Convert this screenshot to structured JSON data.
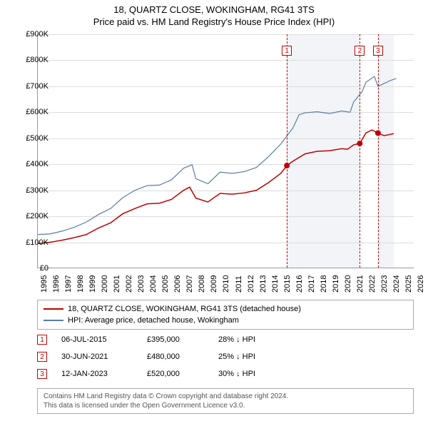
{
  "title": {
    "main": "18, QUARTZ CLOSE, WOKINGHAM, RG41 3TS",
    "sub": "Price paid vs. HM Land Registry's House Price Index (HPI)",
    "fontsize": 13
  },
  "chart": {
    "type": "line",
    "background_color": "#ffffff",
    "grid_color": "#dddddd",
    "axis_color": "#999999",
    "xlim": [
      1995,
      2026
    ],
    "ylim": [
      0,
      900000
    ],
    "ytick_step": 100000,
    "yticks": [
      "£0",
      "£100K",
      "£200K",
      "£300K",
      "£400K",
      "£500K",
      "£600K",
      "£700K",
      "£800K",
      "£900K"
    ],
    "xticks": [
      "1995",
      "1996",
      "1997",
      "1998",
      "1999",
      "2000",
      "2001",
      "2002",
      "2003",
      "2004",
      "2005",
      "2006",
      "2007",
      "2008",
      "2009",
      "2010",
      "2011",
      "2012",
      "2013",
      "2014",
      "2015",
      "2016",
      "2017",
      "2018",
      "2019",
      "2020",
      "2021",
      "2022",
      "2023",
      "2024",
      "2025",
      "2026"
    ],
    "tick_fontsize": 11,
    "shaded_ranges": [
      {
        "start": 2015.5,
        "end": 2021.5,
        "color": "#e8ebf0"
      },
      {
        "start": 2023.0,
        "end": 2024.3,
        "color": "#e8ebf0"
      }
    ],
    "series": [
      {
        "name": "price_paid",
        "label": "18, QUARTZ CLOSE, WOKINGHAM, RG41 3TS (detached house)",
        "color": "#c00000",
        "line_width": 1.5,
        "points": [
          [
            1995,
            95000
          ],
          [
            1996,
            100000
          ],
          [
            1997,
            108000
          ],
          [
            1998,
            118000
          ],
          [
            1999,
            130000
          ],
          [
            2000,
            155000
          ],
          [
            2001,
            175000
          ],
          [
            2002,
            210000
          ],
          [
            2003,
            230000
          ],
          [
            2004,
            248000
          ],
          [
            2005,
            250000
          ],
          [
            2006,
            265000
          ],
          [
            2007,
            300000
          ],
          [
            2007.5,
            312000
          ],
          [
            2008,
            270000
          ],
          [
            2009,
            255000
          ],
          [
            2010,
            288000
          ],
          [
            2011,
            285000
          ],
          [
            2012,
            290000
          ],
          [
            2013,
            300000
          ],
          [
            2014,
            330000
          ],
          [
            2015,
            365000
          ],
          [
            2015.5,
            395000
          ],
          [
            2016,
            412000
          ],
          [
            2017,
            440000
          ],
          [
            2018,
            450000
          ],
          [
            2019,
            452000
          ],
          [
            2020,
            460000
          ],
          [
            2020.5,
            458000
          ],
          [
            2021,
            475000
          ],
          [
            2021.5,
            480000
          ],
          [
            2022,
            520000
          ],
          [
            2022.5,
            532000
          ],
          [
            2023,
            520000
          ],
          [
            2023.5,
            510000
          ],
          [
            2024,
            515000
          ],
          [
            2024.3,
            518000
          ]
        ],
        "markers": [
          {
            "x": 2015.5,
            "y": 395000
          },
          {
            "x": 2021.5,
            "y": 480000
          },
          {
            "x": 2023.0,
            "y": 520000
          }
        ]
      },
      {
        "name": "hpi",
        "label": "HPI: Average price, detached house, Wokingham",
        "color": "#5b7ca8",
        "line_width": 1.2,
        "points": [
          [
            1995,
            130000
          ],
          [
            1996,
            132000
          ],
          [
            1997,
            143000
          ],
          [
            1998,
            158000
          ],
          [
            1999,
            178000
          ],
          [
            2000,
            207000
          ],
          [
            2001,
            230000
          ],
          [
            2002,
            272000
          ],
          [
            2003,
            300000
          ],
          [
            2004,
            318000
          ],
          [
            2005,
            320000
          ],
          [
            2006,
            340000
          ],
          [
            2007,
            385000
          ],
          [
            2007.7,
            398000
          ],
          [
            2008,
            345000
          ],
          [
            2009,
            325000
          ],
          [
            2010,
            370000
          ],
          [
            2011,
            365000
          ],
          [
            2012,
            372000
          ],
          [
            2013,
            388000
          ],
          [
            2014,
            430000
          ],
          [
            2015,
            478000
          ],
          [
            2016,
            540000
          ],
          [
            2016.5,
            590000
          ],
          [
            2017,
            598000
          ],
          [
            2018,
            602000
          ],
          [
            2019,
            595000
          ],
          [
            2020,
            605000
          ],
          [
            2020.7,
            600000
          ],
          [
            2021,
            640000
          ],
          [
            2021.7,
            680000
          ],
          [
            2022,
            715000
          ],
          [
            2022.7,
            738000
          ],
          [
            2023,
            700000
          ],
          [
            2023.7,
            715000
          ],
          [
            2024,
            722000
          ],
          [
            2024.5,
            730000
          ]
        ]
      }
    ],
    "event_lines": [
      {
        "num": "1",
        "x": 2015.5,
        "color": "#c00000"
      },
      {
        "num": "2",
        "x": 2021.5,
        "color": "#c00000"
      },
      {
        "num": "3",
        "x": 2023.0,
        "color": "#c00000"
      }
    ]
  },
  "legend": {
    "fontsize": 11,
    "items": [
      {
        "color": "#c00000",
        "label": "18, QUARTZ CLOSE, WOKINGHAM, RG41 3TS (detached house)"
      },
      {
        "color": "#5b7ca8",
        "label": "HPI: Average price, detached house, Wokingham"
      }
    ]
  },
  "events": [
    {
      "num": "1",
      "date": "06-JUL-2015",
      "price": "£395,000",
      "rel": "28% ↓ HPI"
    },
    {
      "num": "2",
      "date": "30-JUN-2021",
      "price": "£480,000",
      "rel": "25% ↓ HPI"
    },
    {
      "num": "3",
      "date": "12-JAN-2023",
      "price": "£520,000",
      "rel": "30% ↓ HPI"
    }
  ],
  "footer": {
    "line1": "Contains HM Land Registry data © Crown copyright and database right 2024.",
    "line2": "This data is licensed under the Open Government Licence v3.0.",
    "fontsize": 10,
    "color": "#555555"
  }
}
